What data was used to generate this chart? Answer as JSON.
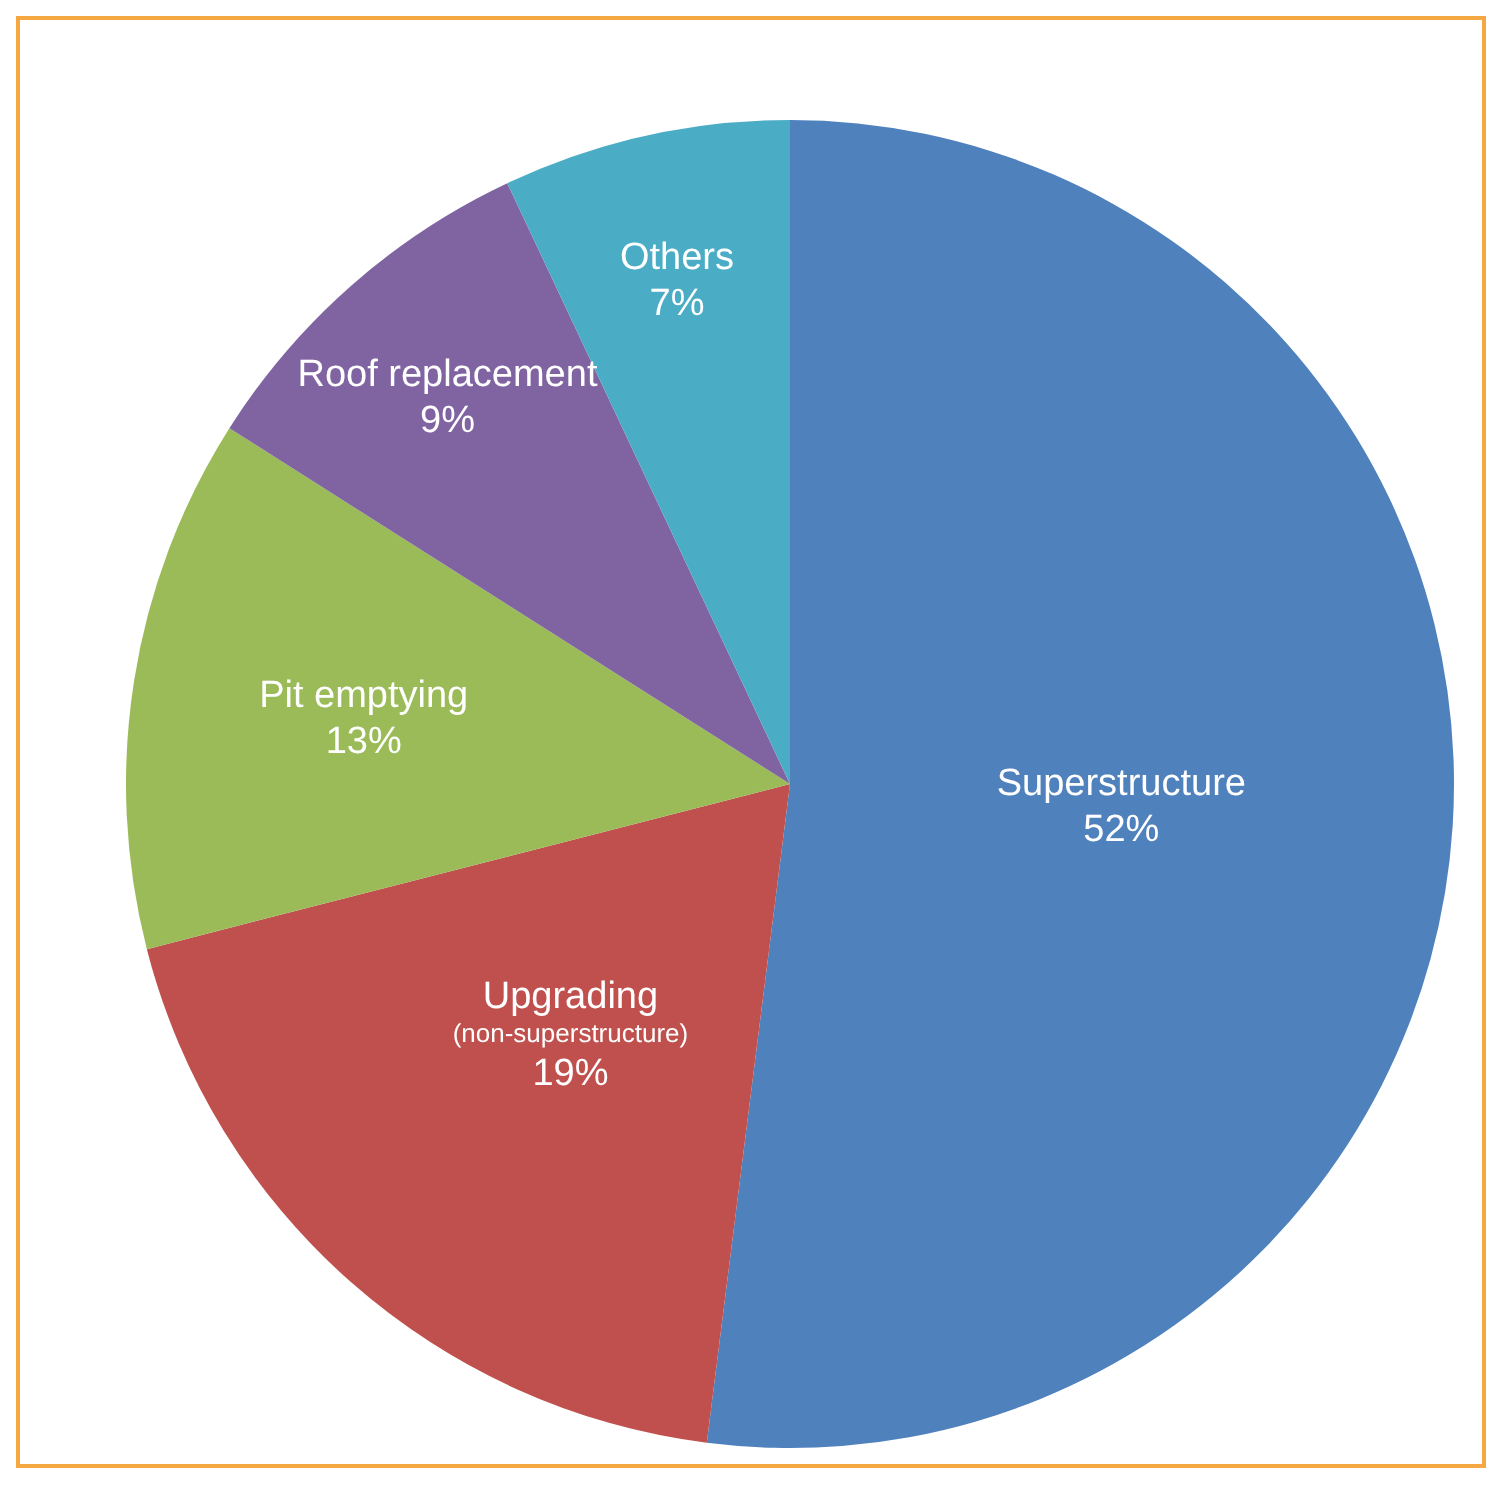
{
  "chart_data": {
    "type": "pie",
    "categories": [
      "Superstructure",
      "Upgrading\n(non-superstructure)",
      "Pit emptying",
      "Roof replacement",
      "Others"
    ],
    "values": [
      52,
      19,
      13,
      9,
      7
    ],
    "colors": [
      "#4f81bd",
      "#c0504d",
      "#9bbb59",
      "#8064a2",
      "#4bacc6"
    ],
    "value_labels": [
      "52%",
      "19%",
      "13%",
      "9%",
      "7%"
    ],
    "legend": false
  }
}
